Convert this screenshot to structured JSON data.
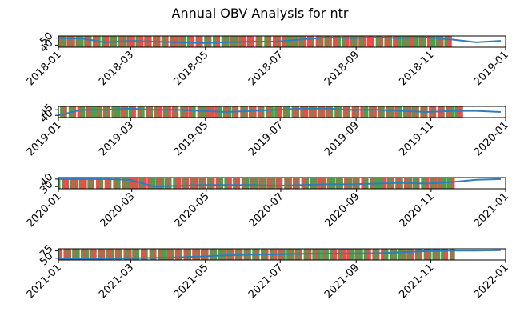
{
  "title": "Annual OBV Analysis for ntr",
  "colors": {
    "up": "#4c9e4c",
    "down": "#f04a4a",
    "line": "#2f7db8",
    "frame": "#000000"
  },
  "chart_data": [
    {
      "type": "line",
      "year": 2018,
      "xlim": [
        "2018-01-01",
        "2019-01-01"
      ],
      "ylim": [
        37,
        53
      ],
      "xticks": [
        "2018-01",
        "2018-03",
        "2018-05",
        "2018-07",
        "2018-09",
        "2018-11",
        "2019-01"
      ],
      "yticks": [
        40,
        50
      ],
      "series": [
        {
          "x": [
            "2018-01-01",
            "2018-01-20",
            "2018-02-08",
            "2018-02-28",
            "2018-03-20",
            "2018-04-08",
            "2018-04-28",
            "2018-05-18",
            "2018-06-08",
            "2018-06-28",
            "2018-07-18",
            "2018-08-08",
            "2018-08-28",
            "2018-09-18",
            "2018-10-08",
            "2018-10-28",
            "2018-11-18",
            "2018-12-08",
            "2018-12-28"
          ],
          "y": [
            50,
            49.5,
            44,
            46,
            45,
            44,
            43,
            44,
            45,
            45,
            48,
            51,
            50,
            51,
            50,
            51,
            48,
            44,
            46
          ]
        }
      ],
      "volume_colors": "GRGGRRRGRRGRGGRGRRGRGRRGRGGRRRGGRGRGRRGGRGRRGGGRRGRGRRGGRGRRRGGRGRGRRGGRRGRGGRRGRGRRRGGRGRGGRRRGGRGRRGRGGRGRRGRGRRGRGGRRGGRGRRRGRGGRRGRGRGGRRGGRGRRRGRRRGRGGRGRRGRRGRGGRRGRGRGRRGGRGRRRRGGRGRGGRRGRGRRGRGGRGRRRGGRGRGGRRRGGRGRGRRGGRRG"
    },
    {
      "type": "line",
      "year": 2019,
      "xlim": [
        "2019-01-01",
        "2020-01-01"
      ],
      "ylim": [
        38,
        48
      ],
      "xticks": [
        "2019-01",
        "2019-03",
        "2019-05",
        "2019-07",
        "2019-09",
        "2019-11",
        "2020-01"
      ],
      "yticks": [
        40,
        45
      ],
      "series": [
        {
          "x": [
            "2019-01-01",
            "2019-01-20",
            "2019-02-08",
            "2019-02-28",
            "2019-03-20",
            "2019-04-08",
            "2019-04-28",
            "2019-05-18",
            "2019-06-08",
            "2019-06-28",
            "2019-07-18",
            "2019-08-08",
            "2019-08-28",
            "2019-09-18",
            "2019-10-08",
            "2019-10-28",
            "2019-11-18",
            "2019-12-08",
            "2019-12-28"
          ],
          "y": [
            40,
            45,
            45,
            46,
            45,
            45,
            44,
            43,
            44,
            45,
            46,
            46,
            45,
            45,
            44,
            43,
            44,
            44,
            43
          ]
        }
      ],
      "volume_colors": "RGGRGRRGGRGRRGGRGRRGRGGRGRRGGRRGRGGRGRRGRGGRRRGRGGRGRRGGRGRRGRGGRGRRGRGGRGRGRRGGRRGRGGRRGRGRRGGRGRRGRGRRGGRGGRRGRGRGGRRGRGRRGRGGRRRGRGGRGRRGGRGRRGGRGRRGRGRGGRRGRGRGGRRGRGGRRGRGRRGGRGRGRRGRGGRRGRGRRRGGRGRGRRGGRGRRGRGGRRGRGRRGRGGRRGRGGRRG"
    },
    {
      "type": "line",
      "year": 2020,
      "xlim": [
        "2020-01-01",
        "2021-01-01"
      ],
      "ylim": [
        27,
        42
      ],
      "xticks": [
        "2020-01",
        "2020-03",
        "2020-05",
        "2020-07",
        "2020-09",
        "2020-11",
        "2021-01"
      ],
      "yticks": [
        30,
        40
      ],
      "series": [
        {
          "x": [
            "2020-01-01",
            "2020-01-20",
            "2020-02-08",
            "2020-02-28",
            "2020-03-20",
            "2020-04-08",
            "2020-04-28",
            "2020-05-18",
            "2020-06-08",
            "2020-06-28",
            "2020-07-18",
            "2020-08-08",
            "2020-08-28",
            "2020-09-18",
            "2020-10-08",
            "2020-10-28",
            "2020-11-18",
            "2020-12-08",
            "2020-12-28"
          ],
          "y": [
            40,
            40,
            40,
            39,
            30,
            31,
            32,
            32,
            32,
            31,
            32,
            33,
            33,
            34,
            35,
            34,
            36,
            39,
            40
          ]
        }
      ],
      "volume_colors": "GRGRRRGGRGRRGRRRGGRGRRRRGRGGRRGRGRGGRRGRGGRRGRGRGGRGRRGGRGRRGRGGRGRGGRRGRGGRGRGRRGGRGRGGRGRGRRGGRGGRRGRGRRGGRGGRGRGGRRGRGGRGRGGRGRRGGRGRGGRGRGGRRGRGGRGGRRGRGGRGGRGRGGGRGRGGRGRGGRRGGRGRGGRGGGRGRGGRGGRRGGRGRGGRGGRRGGGRGRGGRGGRGGRGGGRG"
    },
    {
      "type": "line",
      "year": 2021,
      "xlim": [
        "2021-01-01",
        "2022-01-01"
      ],
      "ylim": [
        44,
        82
      ],
      "xticks": [
        "2021-01",
        "2021-03",
        "2021-05",
        "2021-07",
        "2021-09",
        "2021-11",
        "2022-01"
      ],
      "yticks": [
        50,
        75
      ],
      "series": [
        {
          "x": [
            "2021-01-01",
            "2021-01-20",
            "2021-02-08",
            "2021-02-28",
            "2021-03-20",
            "2021-04-08",
            "2021-04-28",
            "2021-05-18",
            "2021-06-08",
            "2021-06-28",
            "2021-07-18",
            "2021-08-08",
            "2021-08-28",
            "2021-09-18",
            "2021-10-08",
            "2021-10-28",
            "2021-11-18",
            "2021-12-08",
            "2021-12-28"
          ],
          "y": [
            48,
            48,
            49,
            50,
            51,
            53,
            56,
            60,
            62,
            63,
            65,
            66,
            66,
            67,
            70,
            74,
            76,
            76,
            77
          ]
        }
      ],
      "volume_colors": "GRGRRGRGGRGGRRGRGGRGRRGGRGRGGRRGGRGRGGRGGRRGRGGRGRRGGRGGRRGRGGRGRRGGRGRGGRGRGGRRGRGGRGRRGGRGRGGRGRRGGRGRGGRRGGRGRGGRGRRGGRGRGGRGGRRGRGGRGRRGGRGGRGRRGGRGRGGRGRGGRRGRGGRGRRGGRGRGGRGGRRGRGGRGRRGGRGGRGRGGRGRRGGRGRGGRGGRRGRGGRGRGGRRGGRG"
    }
  ]
}
